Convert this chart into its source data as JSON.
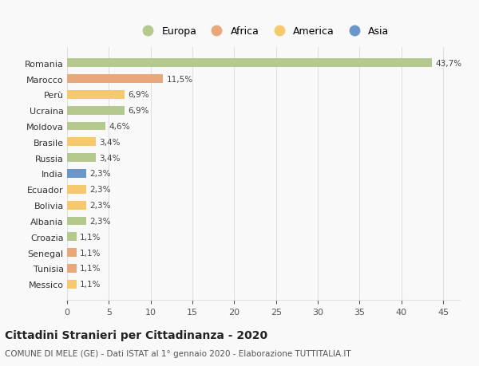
{
  "countries": [
    "Romania",
    "Marocco",
    "Perù",
    "Ucraina",
    "Moldova",
    "Brasile",
    "Russia",
    "India",
    "Ecuador",
    "Bolivia",
    "Albania",
    "Croazia",
    "Senegal",
    "Tunisia",
    "Messico"
  ],
  "values": [
    43.7,
    11.5,
    6.9,
    6.9,
    4.6,
    3.4,
    3.4,
    2.3,
    2.3,
    2.3,
    2.3,
    1.1,
    1.1,
    1.1,
    1.1
  ],
  "labels": [
    "43,7%",
    "11,5%",
    "6,9%",
    "6,9%",
    "4,6%",
    "3,4%",
    "3,4%",
    "2,3%",
    "2,3%",
    "2,3%",
    "2,3%",
    "1,1%",
    "1,1%",
    "1,1%",
    "1,1%"
  ],
  "colors": [
    "#b5c98e",
    "#e8a87c",
    "#f7c96e",
    "#b5c98e",
    "#b5c98e",
    "#f7c96e",
    "#b5c98e",
    "#6b96c8",
    "#f7c96e",
    "#f7c96e",
    "#b5c98e",
    "#b5c98e",
    "#e8a87c",
    "#e8a87c",
    "#f7c96e"
  ],
  "legend": [
    {
      "label": "Europa",
      "color": "#b5c98e"
    },
    {
      "label": "Africa",
      "color": "#e8a87c"
    },
    {
      "label": "America",
      "color": "#f7c96e"
    },
    {
      "label": "Asia",
      "color": "#6b96c8"
    }
  ],
  "title": "Cittadini Stranieri per Cittadinanza - 2020",
  "subtitle": "COMUNE DI MELE (GE) - Dati ISTAT al 1° gennaio 2020 - Elaborazione TUTTITALIA.IT",
  "xlim": [
    0,
    47
  ],
  "xticks": [
    0,
    5,
    10,
    15,
    20,
    25,
    30,
    35,
    40,
    45
  ],
  "bg_color": "#f9f9f9",
  "grid_color": "#e0e0e0"
}
